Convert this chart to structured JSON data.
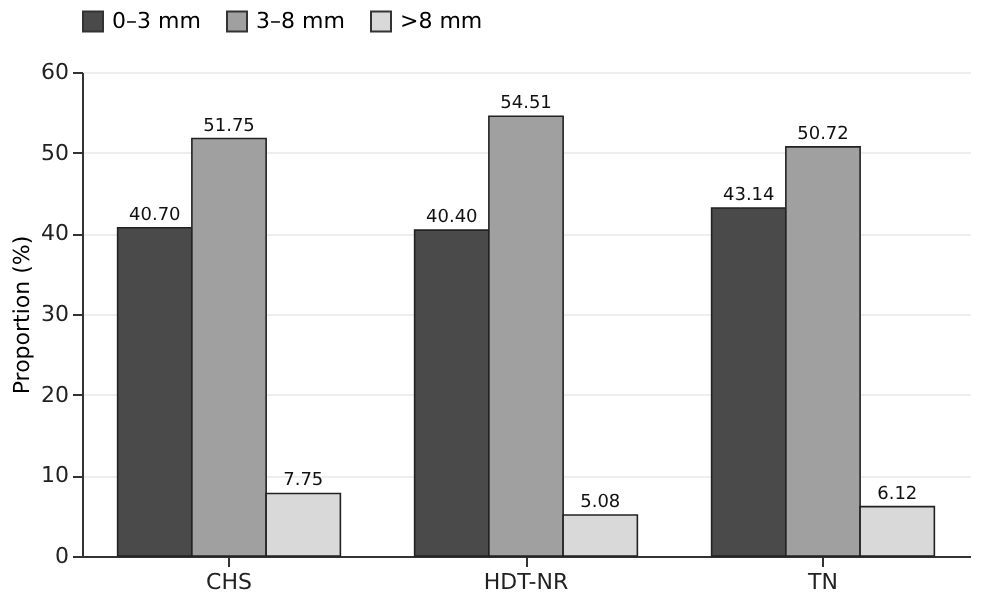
{
  "chart_data": {
    "type": "bar",
    "ylabel": "Proportion (%)",
    "categories": [
      "CHS",
      "HDT-NR",
      "TN"
    ],
    "series": [
      {
        "name": "0–3 mm",
        "color": "#4a4a4a",
        "values": [
          40.7,
          40.4,
          43.14
        ],
        "value_labels": [
          "40.70",
          "40.40",
          "43.14"
        ]
      },
      {
        "name": "3–8 mm",
        "color": "#a0a0a0",
        "values": [
          51.75,
          54.51,
          50.72
        ],
        "value_labels": [
          "51.75",
          "54.51",
          "50.72"
        ]
      },
      {
        "name": ">8 mm",
        "color": "#d9d9d9",
        "values": [
          7.75,
          5.08,
          6.12
        ],
        "value_labels": [
          "7.75",
          "5.08",
          "6.12"
        ]
      }
    ],
    "ylim": [
      0,
      60
    ],
    "yticks": [
      0,
      10,
      20,
      30,
      40,
      50,
      60
    ],
    "grid": "y",
    "legend": "top"
  }
}
